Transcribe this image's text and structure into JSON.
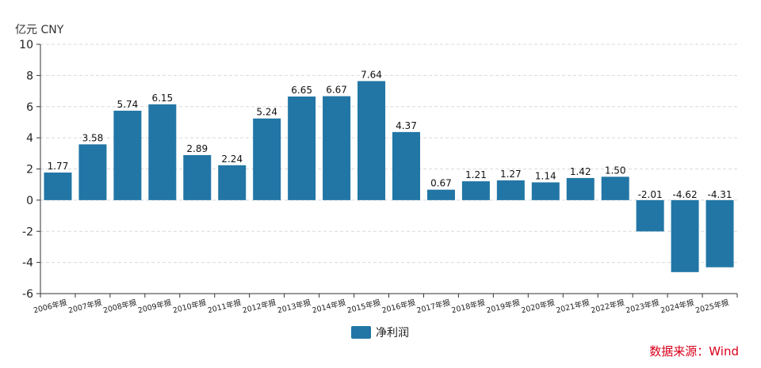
{
  "chart_data": {
    "type": "bar",
    "unit_label": "亿元  CNY",
    "categories": [
      "2006年报",
      "2007年报",
      "2008年报",
      "2009年报",
      "2010年报",
      "2011年报",
      "2012年报",
      "2013年报",
      "2014年报",
      "2015年报",
      "2016年报",
      "2017年报",
      "2018年报",
      "2019年报",
      "2020年报",
      "2021年报",
      "2022年报",
      "2023年报",
      "2024年报",
      "2025年报"
    ],
    "series": [
      {
        "name": "净利润",
        "values": [
          1.77,
          3.58,
          5.74,
          6.15,
          2.89,
          2.24,
          5.24,
          6.65,
          6.67,
          7.64,
          4.37,
          0.67,
          1.21,
          1.27,
          1.14,
          1.42,
          1.5,
          -2.01,
          -4.62,
          -4.31
        ]
      }
    ],
    "data_labels": [
      "1.77",
      "3.58",
      "5.74",
      "6.15",
      "2.89",
      "2.24",
      "5.24",
      "6.65",
      "6.67",
      "7.64",
      "4.37",
      "0.67",
      "1.21",
      "1.27",
      "1.14",
      "1.42",
      "1.50",
      "-2.01",
      "-4.62",
      "-4.31"
    ],
    "ylim": [
      -6,
      10
    ],
    "yticks": [
      -6,
      -4,
      -2,
      0,
      2,
      4,
      6,
      8,
      10
    ],
    "grid": true,
    "legend_position": "bottom-center",
    "bar_color": "#2176a5"
  },
  "source": "数据来源：Wind"
}
